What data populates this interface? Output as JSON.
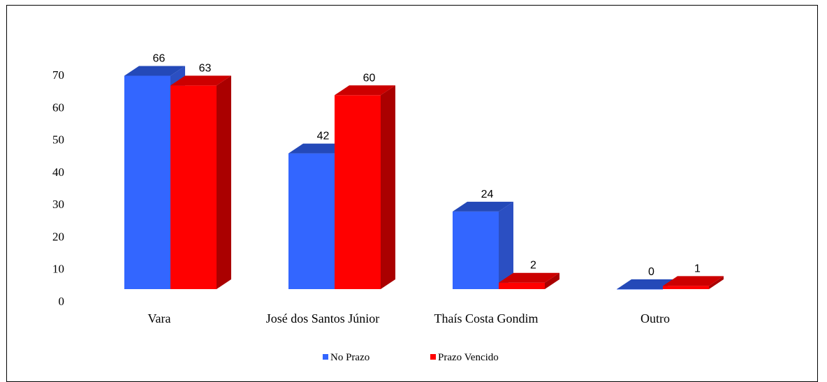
{
  "chart_data": {
    "type": "bar",
    "style": "3d-clustered-column",
    "categories": [
      "Vara",
      "José dos Santos Júnior",
      "Thaís Costa Gondim",
      "Outro"
    ],
    "series": [
      {
        "name": "No Prazo",
        "values": [
          66,
          42,
          24,
          0
        ],
        "color": "#3366ff",
        "side_color": "#2b4fc2",
        "top_color": "#2449b8"
      },
      {
        "name": "Prazo Vencido",
        "values": [
          63,
          60,
          2,
          1
        ],
        "color": "#ff0000",
        "side_color": "#aa0000",
        "top_color": "#cc0000"
      }
    ],
    "ylim": [
      0,
      70
    ],
    "yticks": [
      0,
      10,
      20,
      30,
      40,
      50,
      60,
      70
    ],
    "grid": false,
    "legend_position": "bottom",
    "data_labels": true
  }
}
